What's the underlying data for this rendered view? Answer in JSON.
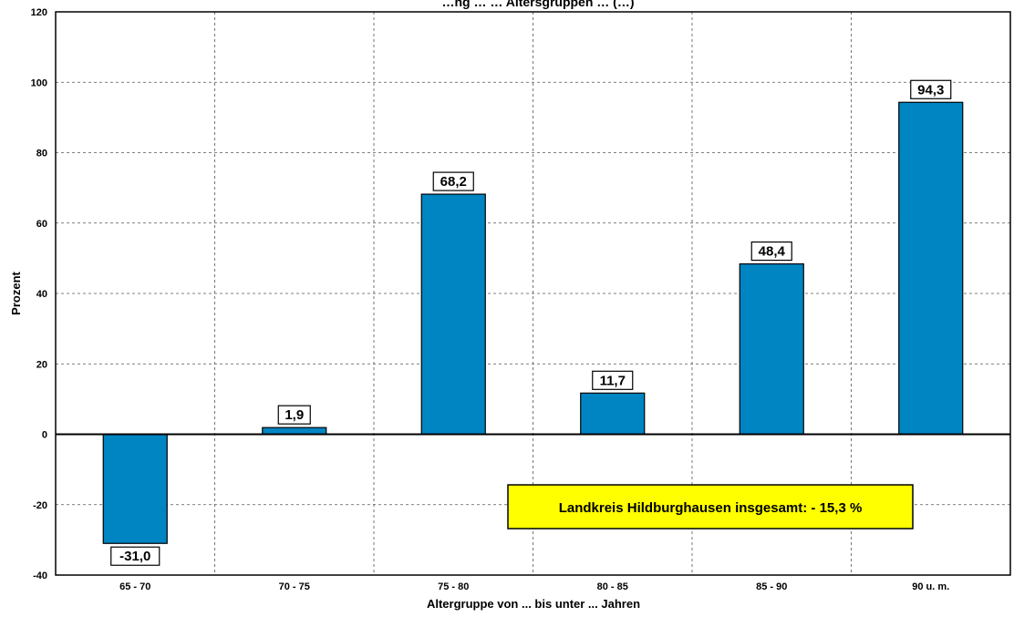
{
  "chart_data": {
    "type": "bar",
    "title": "…ng … … Altersgruppen … (…)",
    "xlabel": "Altergruppe von ... bis unter ... Jahren",
    "ylabel": "Prozent",
    "categories": [
      "65 - 70",
      "70 - 75",
      "75 - 80",
      "80 - 85",
      "85 - 90",
      "90 u. m."
    ],
    "values": [
      -31.0,
      1.9,
      68.2,
      11.7,
      48.4,
      94.3
    ],
    "value_labels": [
      "-31,0",
      "1,9",
      "68,2",
      "11,7",
      "48,4",
      "94,3"
    ],
    "ylim": [
      -40,
      120
    ],
    "yticks": [
      -40,
      -20,
      0,
      20,
      40,
      60,
      80,
      100,
      120
    ],
    "grid": true,
    "bar_color": "#0085C3",
    "annotation": {
      "text": "Landkreis Hildburghausen insgesamt: - 15,3 %",
      "background": "#FFFF00"
    }
  }
}
